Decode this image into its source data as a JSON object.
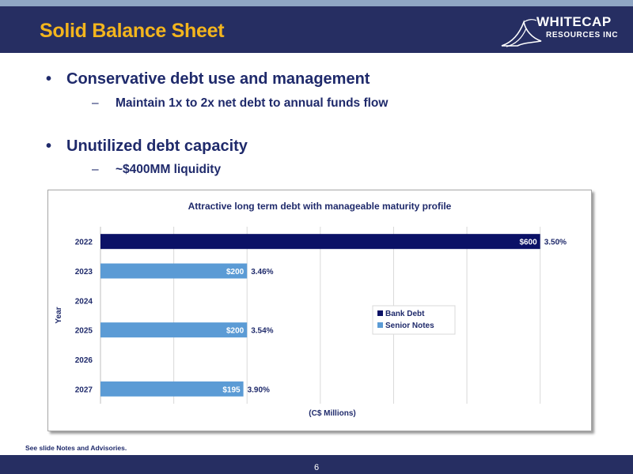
{
  "header": {
    "title": "Solid Balance Sheet"
  },
  "logo": {
    "line1": "WHITECAP",
    "line2": "RESOURCES INC",
    "icon": "whitecap-wave-icon"
  },
  "bullets": [
    {
      "text": "Conservative debt use and management",
      "sub": "Maintain 1x to 2x net debt to annual funds flow"
    },
    {
      "text": "Unutilized debt capacity",
      "sub": "~$400MM liquidity"
    }
  ],
  "bullet_glyph": "•",
  "dash_glyph": "–",
  "chart_data": {
    "type": "bar",
    "orientation": "horizontal",
    "stacked": false,
    "title": "Attractive long term debt with manageable maturity profile",
    "xlabel": "(C$ Millions)",
    "ylabel": "Year",
    "categories": [
      "2022",
      "2023",
      "2024",
      "2025",
      "2026",
      "2027"
    ],
    "xlim": [
      0,
      650
    ],
    "grid": "vertical",
    "x_ticks_shown": false,
    "legend_position": "center-right",
    "series": [
      {
        "name": "Bank Debt",
        "color": "#0b1166",
        "values": [
          600,
          null,
          null,
          null,
          null,
          null
        ],
        "labels": [
          "$600",
          null,
          null,
          null,
          null,
          null
        ],
        "rates": [
          "3.50%",
          null,
          null,
          null,
          null,
          null
        ]
      },
      {
        "name": "Senior Notes",
        "color": "#5b9bd5",
        "values": [
          null,
          200,
          null,
          200,
          null,
          195
        ],
        "labels": [
          null,
          "$200",
          null,
          "$200",
          null,
          "$195"
        ],
        "rates": [
          null,
          "3.46%",
          null,
          "3.54%",
          null,
          "3.90%"
        ]
      }
    ]
  },
  "footnote": "See slide Notes and Advisories.",
  "page_number": "6",
  "colors": {
    "header": "#262e62",
    "title": "#f3b51d",
    "text": "#1f2a6b"
  }
}
